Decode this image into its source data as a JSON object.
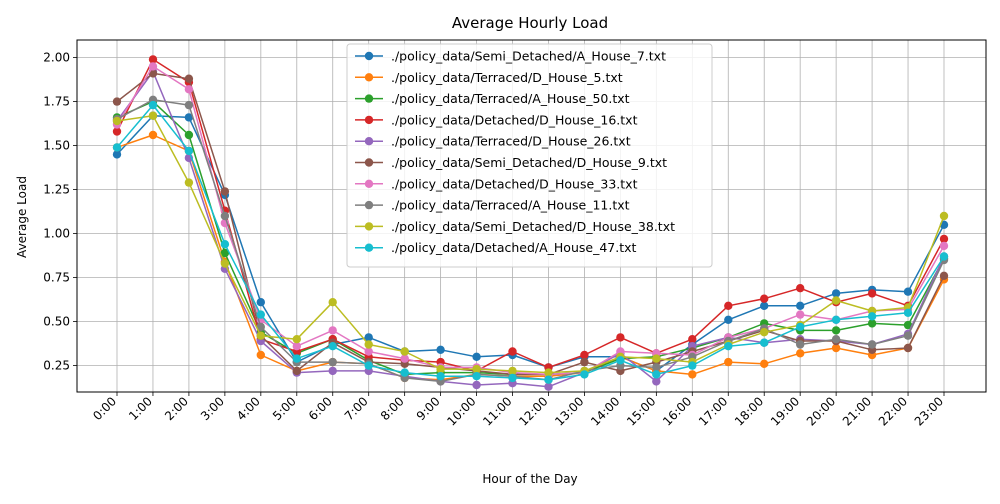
{
  "chart_data": {
    "type": "line",
    "title": "Average Hourly Load",
    "xlabel": "Hour of the Day",
    "ylabel": "Average Load",
    "categories": [
      "0:00",
      "1:00",
      "2:00",
      "3:00",
      "4:00",
      "5:00",
      "6:00",
      "7:00",
      "8:00",
      "9:00",
      "10:00",
      "11:00",
      "12:00",
      "13:00",
      "14:00",
      "15:00",
      "16:00",
      "17:00",
      "18:00",
      "19:00",
      "20:00",
      "21:00",
      "22:00",
      "23:00"
    ],
    "ylim": [
      0.1,
      2.1
    ],
    "yticks": [
      0.25,
      0.5,
      0.75,
      1.0,
      1.25,
      1.5,
      1.75,
      2.0
    ],
    "ytick_labels": [
      "0.25",
      "0.50",
      "0.75",
      "1.00",
      "1.25",
      "1.50",
      "1.75",
      "2.00"
    ],
    "grid": true,
    "legend_position": "top-center",
    "series": [
      {
        "name": "./policy_data/Semi_Detached/A_House_7.txt",
        "color": "#1f77b4",
        "values": [
          1.45,
          1.67,
          1.66,
          1.22,
          0.61,
          0.27,
          0.37,
          0.41,
          0.33,
          0.34,
          0.3,
          0.31,
          0.24,
          0.3,
          0.3,
          0.22,
          0.37,
          0.51,
          0.59,
          0.59,
          0.66,
          0.68,
          0.67,
          1.05
        ]
      },
      {
        "name": "./policy_data/Terraced/D_House_5.txt",
        "color": "#ff7f0e",
        "values": [
          1.49,
          1.56,
          1.47,
          0.84,
          0.31,
          0.22,
          0.27,
          0.26,
          0.18,
          0.17,
          0.2,
          0.19,
          0.19,
          0.21,
          0.3,
          0.22,
          0.2,
          0.27,
          0.26,
          0.32,
          0.35,
          0.31,
          0.35,
          0.74
        ]
      },
      {
        "name": "./policy_data/Terraced/A_House_50.txt",
        "color": "#2ca02c",
        "values": [
          1.66,
          1.75,
          1.56,
          0.89,
          0.44,
          0.32,
          0.4,
          0.28,
          0.2,
          0.21,
          0.21,
          0.2,
          0.2,
          0.21,
          0.29,
          0.3,
          0.35,
          0.41,
          0.49,
          0.45,
          0.45,
          0.49,
          0.48,
          0.86
        ]
      },
      {
        "name": "./policy_data/Detached/D_House_16.txt",
        "color": "#d62728",
        "values": [
          1.58,
          1.99,
          1.86,
          1.13,
          0.4,
          0.33,
          0.4,
          0.3,
          0.28,
          0.27,
          0.22,
          0.33,
          0.24,
          0.31,
          0.41,
          0.32,
          0.4,
          0.59,
          0.63,
          0.69,
          0.61,
          0.66,
          0.59,
          0.97
        ]
      },
      {
        "name": "./policy_data/Terraced/D_House_26.txt",
        "color": "#9467bd",
        "values": [
          1.64,
          1.92,
          1.43,
          0.8,
          0.39,
          0.21,
          0.22,
          0.22,
          0.19,
          0.16,
          0.14,
          0.15,
          0.13,
          0.21,
          0.32,
          0.16,
          0.36,
          0.41,
          0.38,
          0.4,
          0.39,
          0.37,
          0.43,
          0.87
        ]
      },
      {
        "name": "./policy_data/Semi_Detached/D_House_9.txt",
        "color": "#8c564b",
        "values": [
          1.75,
          1.91,
          1.88,
          1.24,
          0.42,
          0.22,
          0.38,
          0.27,
          0.26,
          0.24,
          0.22,
          0.2,
          0.2,
          0.27,
          0.22,
          0.27,
          0.33,
          0.39,
          0.45,
          0.39,
          0.39,
          0.34,
          0.35,
          0.76
        ]
      },
      {
        "name": "./policy_data/Detached/D_House_33.txt",
        "color": "#e377c2",
        "values": [
          1.62,
          1.95,
          1.82,
          1.06,
          0.51,
          0.36,
          0.45,
          0.33,
          0.29,
          0.24,
          0.24,
          0.21,
          0.2,
          0.21,
          0.33,
          0.32,
          0.31,
          0.41,
          0.46,
          0.54,
          0.51,
          0.56,
          0.57,
          0.93
        ]
      },
      {
        "name": "./policy_data/Terraced/A_House_11.txt",
        "color": "#7f7f7f",
        "values": [
          1.65,
          1.76,
          1.73,
          1.1,
          0.47,
          0.27,
          0.27,
          0.26,
          0.18,
          0.16,
          0.2,
          0.19,
          0.17,
          0.22,
          0.25,
          0.24,
          0.3,
          0.39,
          0.46,
          0.37,
          0.4,
          0.37,
          0.42,
          0.85
        ]
      },
      {
        "name": "./policy_data/Semi_Detached/D_House_38.txt",
        "color": "#bcbd22",
        "values": [
          1.64,
          1.67,
          1.29,
          0.83,
          0.42,
          0.4,
          0.61,
          0.37,
          0.33,
          0.23,
          0.23,
          0.22,
          0.21,
          0.22,
          0.3,
          0.29,
          0.27,
          0.37,
          0.44,
          0.48,
          0.62,
          0.56,
          0.58,
          1.1
        ]
      },
      {
        "name": "./policy_data/Detached/A_House_47.txt",
        "color": "#17becf",
        "values": [
          1.49,
          1.73,
          1.47,
          0.94,
          0.54,
          0.29,
          0.36,
          0.25,
          0.21,
          0.19,
          0.19,
          0.18,
          0.17,
          0.2,
          0.28,
          0.2,
          0.25,
          0.36,
          0.38,
          0.47,
          0.51,
          0.53,
          0.55,
          0.87
        ]
      }
    ]
  }
}
